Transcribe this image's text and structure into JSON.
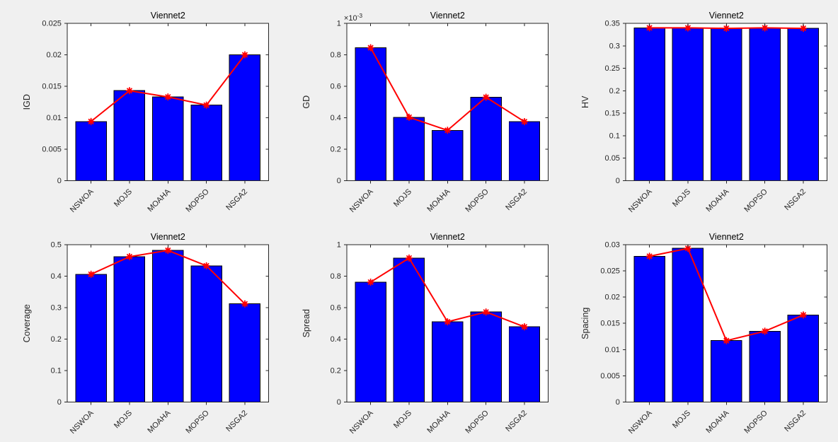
{
  "window": {
    "background": "#f0f0f0"
  },
  "theme": {
    "axes_background": "#ffffff",
    "axes_color": "#262626",
    "text_color": "#262626",
    "title_color": "#000000",
    "bar_fill": "#0000ff",
    "bar_edge": "#000000",
    "line_color": "#ff0000",
    "marker_style": "red-asterisk"
  },
  "chart_data": [
    {
      "type": "bar",
      "title": "Viennet2",
      "xlabel": "",
      "ylabel": "IGD",
      "categories": [
        "NSWOA",
        "MOJS",
        "MOAHA",
        "MOPSO",
        "NSGA2"
      ],
      "values": [
        0.0094,
        0.0143,
        0.0133,
        0.012,
        0.02
      ],
      "line_values": [
        0.0094,
        0.0143,
        0.0133,
        0.012,
        0.02
      ],
      "ylim": [
        0,
        0.025
      ],
      "ytick_labels": [
        "0",
        "0.005",
        "0.01",
        "0.015",
        "0.02",
        "0.025"
      ],
      "exponent_label": "",
      "grid": false,
      "legend": "none",
      "overlay": "line-with-markers"
    },
    {
      "type": "bar",
      "title": "Viennet2",
      "xlabel": "",
      "ylabel": "GD",
      "categories": [
        "NSWOA",
        "MOJS",
        "MOAHA",
        "MOPSO",
        "NSGA2"
      ],
      "values": [
        0.845,
        0.403,
        0.32,
        0.53,
        0.375
      ],
      "line_values": [
        0.845,
        0.403,
        0.32,
        0.53,
        0.375
      ],
      "units_multiplier": 0.001,
      "ylim": [
        0,
        1
      ],
      "ytick_labels": [
        "0",
        "0.2",
        "0.4",
        "0.6",
        "0.8",
        "1"
      ],
      "exponent_label": "×10^-3",
      "grid": false,
      "legend": "none",
      "overlay": "line-with-markers"
    },
    {
      "type": "bar",
      "title": "Viennet2",
      "xlabel": "",
      "ylabel": "HV",
      "categories": [
        "NSWOA",
        "MOJS",
        "MOAHA",
        "MOPSO",
        "NSGA2"
      ],
      "values": [
        0.34,
        0.34,
        0.339,
        0.34,
        0.339
      ],
      "line_values": [
        0.34,
        0.34,
        0.339,
        0.34,
        0.339
      ],
      "ylim": [
        0,
        0.35
      ],
      "ytick_labels": [
        "0",
        "0.05",
        "0.1",
        "0.15",
        "0.2",
        "0.25",
        "0.3",
        "0.35"
      ],
      "exponent_label": "",
      "grid": false,
      "legend": "none",
      "overlay": "line-with-markers"
    },
    {
      "type": "bar",
      "title": "Viennet2",
      "xlabel": "",
      "ylabel": "Coverage",
      "categories": [
        "NSWOA",
        "MOJS",
        "MOAHA",
        "MOPSO",
        "NSGA2"
      ],
      "values": [
        0.406,
        0.462,
        0.482,
        0.433,
        0.312
      ],
      "line_values": [
        0.406,
        0.462,
        0.482,
        0.433,
        0.312
      ],
      "ylim": [
        0,
        0.5
      ],
      "ytick_labels": [
        "0",
        "0.1",
        "0.2",
        "0.3",
        "0.4",
        "0.5"
      ],
      "exponent_label": "",
      "grid": false,
      "legend": "none",
      "overlay": "line-with-markers"
    },
    {
      "type": "bar",
      "title": "Viennet2",
      "xlabel": "",
      "ylabel": "Spread",
      "categories": [
        "NSWOA",
        "MOJS",
        "MOAHA",
        "MOPSO",
        "NSGA2"
      ],
      "values": [
        0.762,
        0.915,
        0.51,
        0.572,
        0.478
      ],
      "line_values": [
        0.762,
        0.915,
        0.51,
        0.572,
        0.478
      ],
      "ylim": [
        0,
        1
      ],
      "ytick_labels": [
        "0",
        "0.2",
        "0.4",
        "0.6",
        "0.8",
        "1"
      ],
      "exponent_label": "",
      "grid": false,
      "legend": "none",
      "overlay": "line-with-markers"
    },
    {
      "type": "bar",
      "title": "Viennet2",
      "xlabel": "",
      "ylabel": "Spacing",
      "categories": [
        "NSWOA",
        "MOJS",
        "MOAHA",
        "MOPSO",
        "NSGA2"
      ],
      "values": [
        0.0278,
        0.0293,
        0.0117,
        0.0135,
        0.0166
      ],
      "line_values": [
        0.0278,
        0.0293,
        0.0117,
        0.0135,
        0.0166
      ],
      "ylim": [
        0,
        0.03
      ],
      "ytick_labels": [
        "0",
        "0.005",
        "0.01",
        "0.015",
        "0.02",
        "0.025",
        "0.03"
      ],
      "exponent_label": "",
      "grid": false,
      "legend": "none",
      "overlay": "line-with-markers"
    }
  ]
}
